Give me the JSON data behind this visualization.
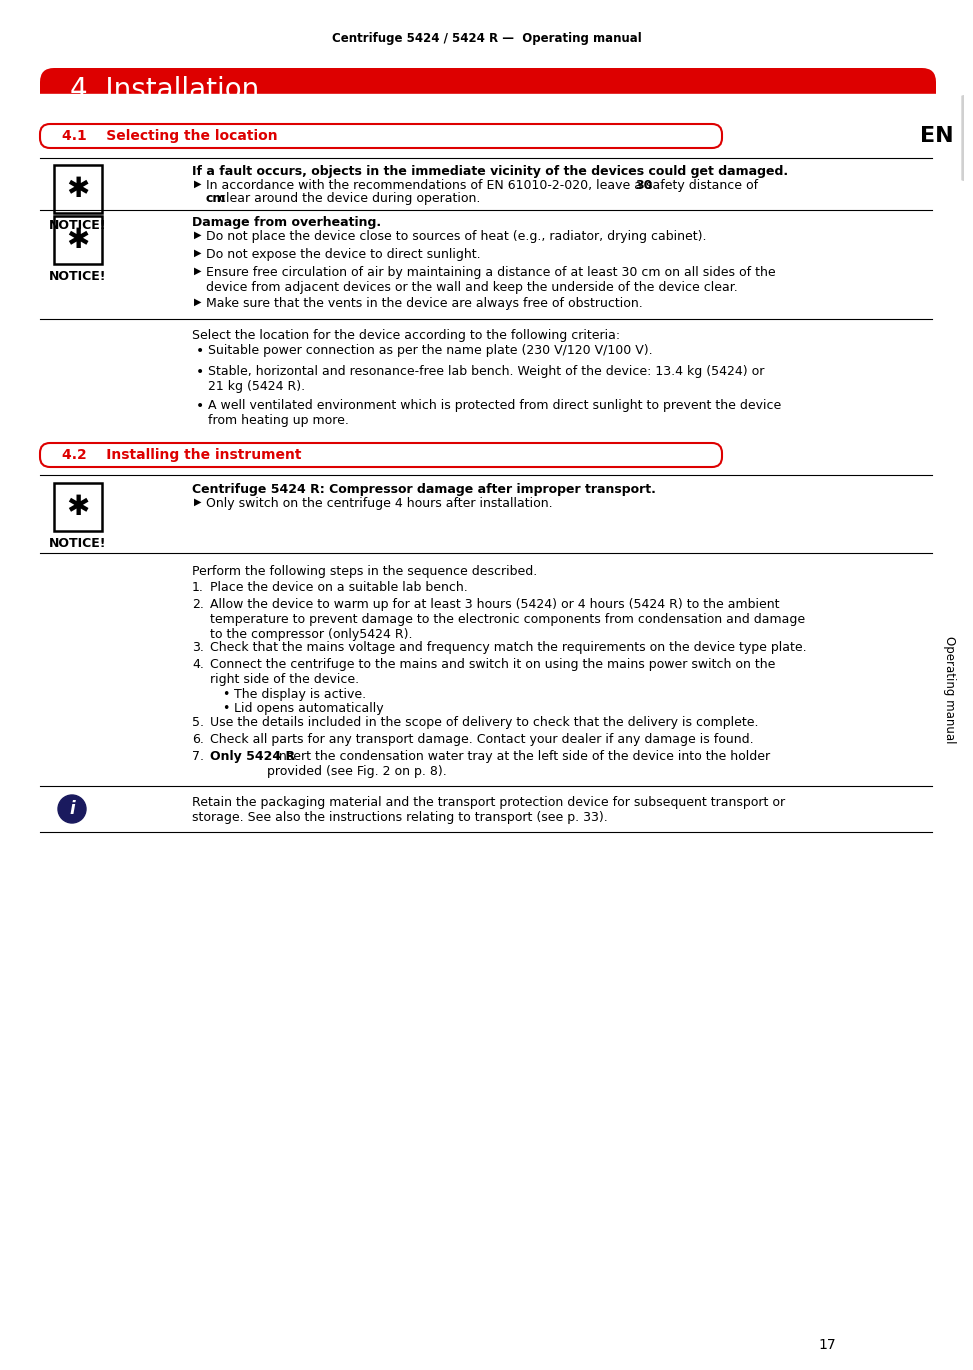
{
  "page_title": "Centrifuge 5424 / 5424 R —  Operating manual",
  "chapter_title": "4  Installation",
  "section41_title": "4.1    Selecting the location",
  "section42_title": "4.2    Installing the instrument",
  "notice_label": "NOTICE!",
  "notice1_heading": "If a fault occurs, objects in the immediate vicinity of the devices could get damaged.",
  "notice1_pre": "In accordance with the recommendations of EN 61010-2-020, leave a safety distance of ",
  "notice1_bold1": "30",
  "notice1_mid": "\n",
  "notice1_bold2": "cm",
  "notice1_post": " clear around the device during operation.",
  "notice2_heading": "Damage from overheating.",
  "notice2_bullets": [
    "Do not place the device close to sources of heat (e.g., radiator, drying cabinet).",
    "Do not expose the device to direct sunlight.",
    "Ensure free circulation of air by maintaining a distance of at least 30 cm on all sides of the\ndevice from adjacent devices or the wall and keep the underside of the device clear.",
    "Make sure that the vents in the device are always free of obstruction."
  ],
  "select_intro": "Select the location for the device according to the following criteria:",
  "select_bullets": [
    "Suitable power connection as per the name plate (230 V/120 V/100 V).",
    "Stable, horizontal and resonance-free lab bench. Weight of the device: 13.4 kg (5424) or\n21 kg (5424 R).",
    "A well ventilated environment which is protected from direct sunlight to prevent the device\nfrom heating up more."
  ],
  "notice3_heading": "Centrifuge 5424 R: Compressor damage after improper transport.",
  "notice3_bullet": "Only switch on the centrifuge 4 hours after installation.",
  "perform_intro": "Perform the following steps in the sequence described.",
  "steps": [
    {
      "bold": "",
      "text": "Place the device on a suitable lab bench."
    },
    {
      "bold": "",
      "text": "Allow the device to warm up for at least 3 hours (5424) or 4 hours (5424 R) to the ambient\ntemperature to prevent damage to the electronic components from condensation and damage\nto the compressor (only5424 R)."
    },
    {
      "bold": "",
      "text": "Check that the mains voltage and frequency match the requirements on the device type plate."
    },
    {
      "bold": "",
      "text": "Connect the centrifuge to the mains and switch it on using the mains power switch on the\nright side of the device."
    },
    {
      "bold": "",
      "text": "Use the details included in the scope of delivery to check that the delivery is complete."
    },
    {
      "bold": "",
      "text": "Check all parts for any transport damage. Contact your dealer if any damage is found."
    },
    {
      "bold": "Only 5424 R",
      "text": ": Insert the condensation water tray at the left side of the device into the holder\nprovided (see Fig. 2 on p. 8)."
    }
  ],
  "step4_subbullets": [
    "The display is active.",
    "Lid opens automatically"
  ],
  "info_text": "Retain the packaging material and the transport protection device for subsequent transport or\nstorage. See also the instructions relating to transport (see p. 33).",
  "sidebar_text": "Operating manual",
  "sidebar_en": "EN",
  "page_number": "17",
  "red": "#dd0000",
  "black": "#000000",
  "white": "#ffffff",
  "gray_tab": "#d0d0d0"
}
